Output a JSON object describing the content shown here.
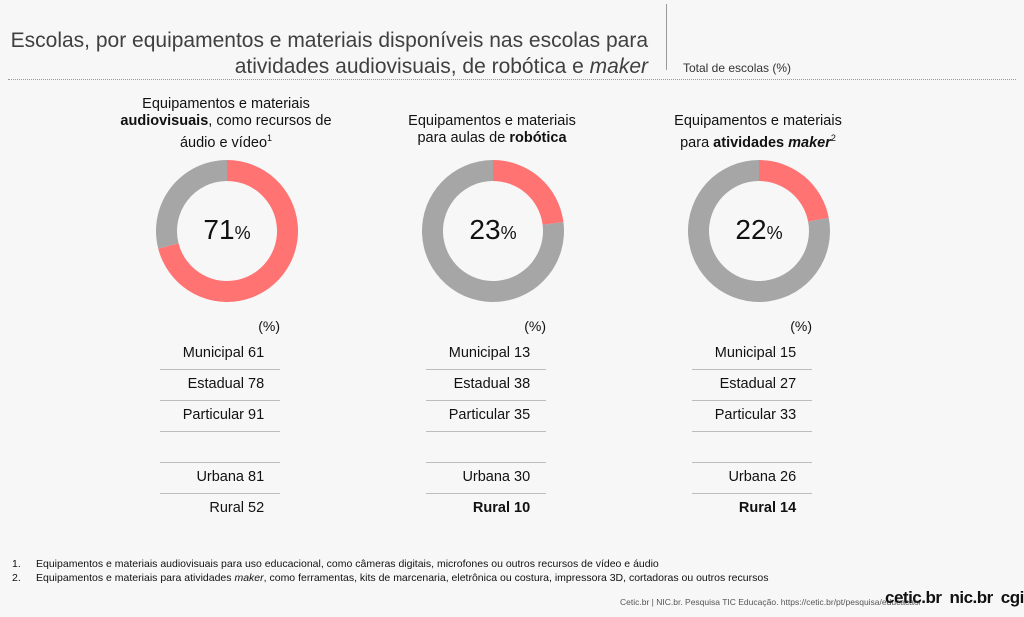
{
  "header": {
    "title_line1": "Escolas, por equipamentos e materiais disponíveis nas escolas para",
    "title_line2_prefix": "atividades audiovisuais, de robótica e ",
    "title_line2_em": "maker",
    "total_label": "Total de escolas (%)"
  },
  "panels": [
    {
      "head_line1": "Equipamentos e materiais",
      "head_line2_bold": "audiovisuais",
      "head_line2_rest": ", como recursos de",
      "head_line3": "áudio e vídeo",
      "head_sup": "1",
      "total_value": "71",
      "pct_sign": "%",
      "unit": "(%)",
      "rows": [
        {
          "label": "Municipal",
          "value": "61"
        },
        {
          "label": "Estadual",
          "value": "78"
        },
        {
          "label": "Particular",
          "value": "91"
        },
        {
          "label": "",
          "value": ""
        },
        {
          "label": "Urbana",
          "value": "81"
        },
        {
          "label": "Rural",
          "value": "52"
        }
      ]
    },
    {
      "head_line1": "Equipamentos e materiais",
      "head_line2_rest": "para aulas de ",
      "head_line2_bold": "robótica",
      "total_value": "23",
      "pct_sign": "%",
      "unit": "(%)",
      "rows": [
        {
          "label": "Municipal",
          "value": "13"
        },
        {
          "label": "Estadual",
          "value": "38"
        },
        {
          "label": "Particular",
          "value": "35"
        },
        {
          "label": "",
          "value": ""
        },
        {
          "label": "Urbana",
          "value": "30"
        },
        {
          "label": "Rural",
          "value": "10"
        }
      ]
    },
    {
      "head_line1": "Equipamentos e materiais",
      "head_line2_rest": "para ",
      "head_line2_bold": "atividades ",
      "head_line2_bold_em": "maker",
      "head_sup": "2",
      "total_value": "22",
      "pct_sign": "%",
      "unit": "(%)",
      "rows": [
        {
          "label": "Municipal",
          "value": "15"
        },
        {
          "label": "Estadual",
          "value": "27"
        },
        {
          "label": "Particular",
          "value": "33"
        },
        {
          "label": "",
          "value": ""
        },
        {
          "label": "Urbana",
          "value": "26"
        },
        {
          "label": "Rural",
          "value": "14"
        }
      ]
    }
  ],
  "notes": {
    "n1": "1.",
    "t1": "Equipamentos e materiais audiovisuais para uso educacional, como câmeras digitais, microfones ou outros recursos de vídeo e áudio",
    "n2": "2.",
    "t2_prefix": "Equipamentos e materiais para atividades ",
    "t2_em": "maker",
    "t2_suffix": ", como ferramentas, kits de marcenaria, eletrônica ou costura, impressora 3D, cortadoras ou outros recursos"
  },
  "footer": {
    "source": "Cetic.br | NIC.br. Pesquisa TIC Educação. https://cetic.br/pt/pesquisa/educacao/",
    "logo1": "cetic.br",
    "logo2": "nic.br",
    "logo3": "cgi.br"
  },
  "colors": {
    "highlight": "#ff7373",
    "remainder": "#a6a6a6"
  },
  "chart_data": [
    {
      "type": "pie",
      "variant": "donut",
      "values": [
        71,
        29
      ],
      "highlight_value": 71,
      "table": {
        "categories": [
          "Municipal",
          "Estadual",
          "Particular",
          "Urbana",
          "Rural"
        ],
        "values": [
          61,
          78,
          91,
          81,
          52
        ]
      }
    },
    {
      "type": "pie",
      "variant": "donut",
      "values": [
        23,
        77
      ],
      "highlight_value": 23,
      "table": {
        "categories": [
          "Municipal",
          "Estadual",
          "Particular",
          "Urbana",
          "Rural"
        ],
        "values": [
          13,
          38,
          35,
          30,
          10
        ]
      },
      "bold_rows": [
        "Rural"
      ]
    },
    {
      "type": "pie",
      "variant": "donut",
      "values": [
        22,
        78
      ],
      "highlight_value": 22,
      "table": {
        "categories": [
          "Municipal",
          "Estadual",
          "Particular",
          "Urbana",
          "Rural"
        ],
        "values": [
          15,
          27,
          33,
          26,
          14
        ]
      },
      "bold_rows": [
        "Rural"
      ]
    }
  ]
}
